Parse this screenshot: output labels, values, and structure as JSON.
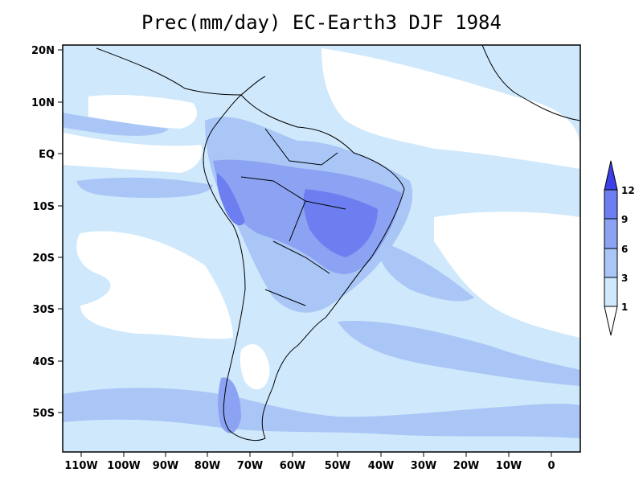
{
  "title": "Prec(mm/day) EC-Earth3 DJF 1984",
  "map": {
    "lat_labels": [
      "20N",
      "10N",
      "EQ",
      "10S",
      "20S",
      "30S",
      "40S",
      "50S"
    ],
    "lon_labels": [
      "110W",
      "100W",
      "90W",
      "80W",
      "70W",
      "60W",
      "50W",
      "40W",
      "30W",
      "20W",
      "10W",
      "0"
    ]
  },
  "colorbar": {
    "levels": [
      "1",
      "3",
      "6",
      "9",
      "12"
    ],
    "colors": [
      "#ffffff",
      "#cfe8fb",
      "#a9c6f6",
      "#8ba3f2",
      "#6d7ff0",
      "#3f3fe8"
    ]
  }
}
